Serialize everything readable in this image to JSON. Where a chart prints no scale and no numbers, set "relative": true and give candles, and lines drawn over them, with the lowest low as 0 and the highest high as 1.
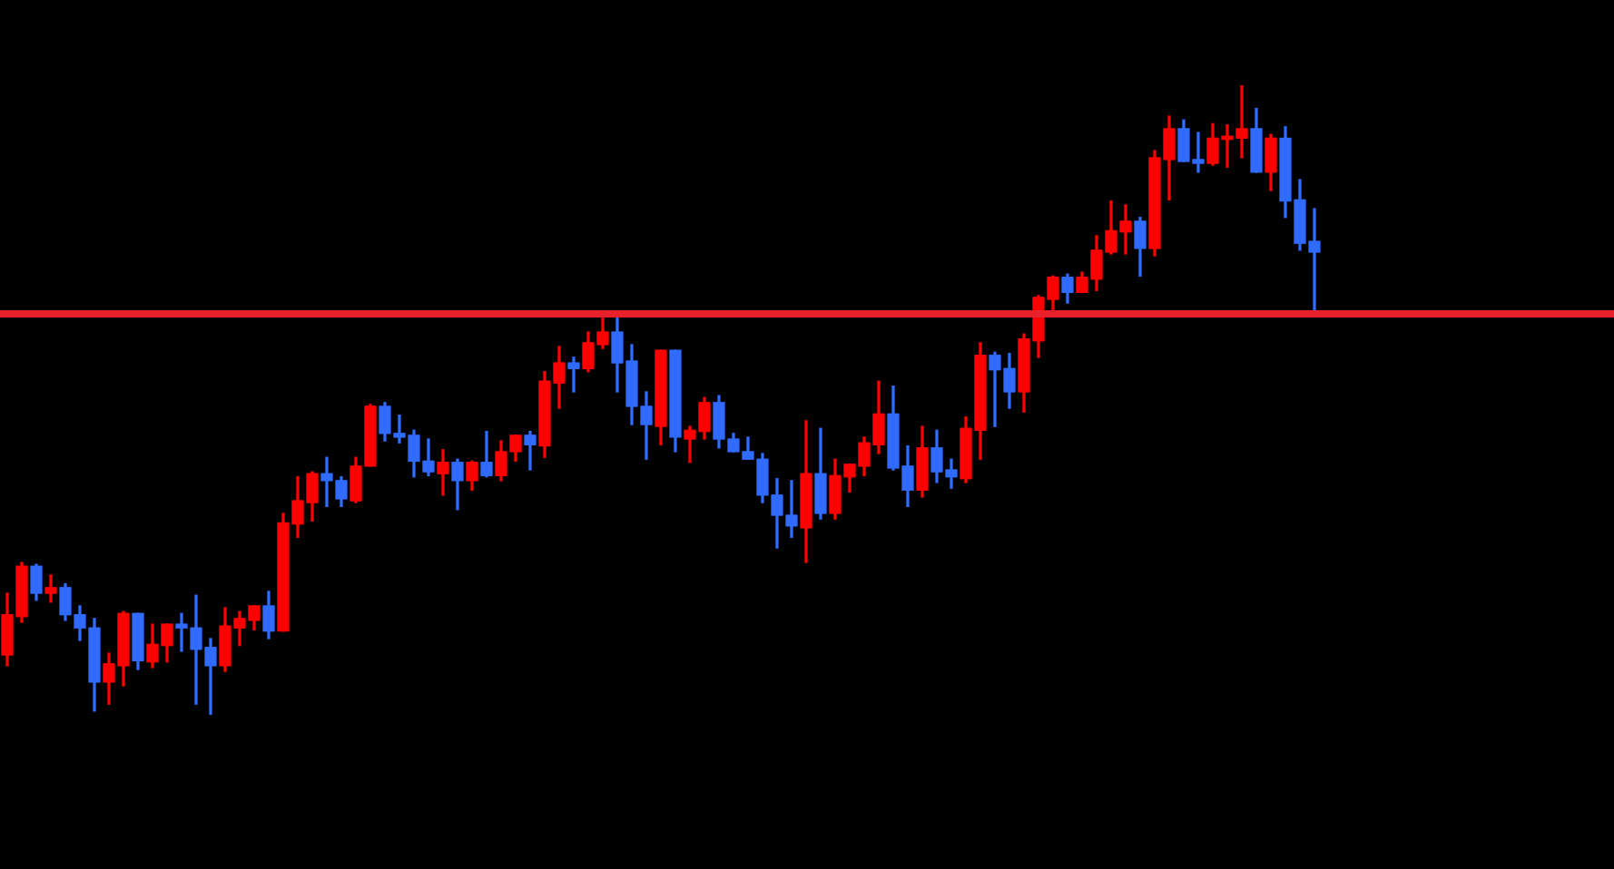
{
  "chart_data": {
    "type": "candlestick",
    "relative": true,
    "categories": [
      null,
      null,
      null,
      null,
      null,
      null,
      null,
      null,
      null,
      null,
      null,
      null,
      null,
      null,
      null,
      null,
      null,
      null,
      null,
      null,
      null,
      null,
      null,
      null,
      null,
      null,
      null,
      null,
      null,
      null,
      null,
      null,
      null,
      null,
      null,
      null,
      null,
      null,
      null,
      null,
      null,
      null,
      null,
      null,
      null,
      null,
      null,
      null,
      null,
      null,
      null,
      null,
      null,
      null,
      null,
      null,
      null,
      null,
      null,
      null,
      null,
      null,
      null,
      null,
      null,
      null,
      null,
      null,
      null,
      null,
      null,
      null,
      null,
      null,
      null,
      null,
      null,
      null,
      null,
      null,
      null,
      null,
      null,
      null,
      null,
      null,
      null,
      null,
      null,
      null,
      null
    ],
    "ohlc": [
      [
        0.095,
        0.193,
        0.078,
        0.159
      ],
      [
        0.156,
        0.242,
        0.147,
        0.236
      ],
      [
        0.236,
        0.239,
        0.182,
        0.193
      ],
      [
        0.193,
        0.222,
        0.179,
        0.202
      ],
      [
        0.202,
        0.208,
        0.15,
        0.159
      ],
      [
        0.159,
        0.173,
        0.118,
        0.138
      ],
      [
        0.138,
        0.153,
        0.006,
        0.052
      ],
      [
        0.052,
        0.098,
        0.017,
        0.081
      ],
      [
        0.078,
        0.164,
        0.046,
        0.161
      ],
      [
        0.161,
        0.161,
        0.072,
        0.086
      ],
      [
        0.084,
        0.144,
        0.075,
        0.112
      ],
      [
        0.11,
        0.144,
        0.084,
        0.144
      ],
      [
        0.144,
        0.161,
        0.101,
        0.138
      ],
      [
        0.138,
        0.19,
        0.017,
        0.104
      ],
      [
        0.107,
        0.121,
        0,
        0.078
      ],
      [
        0.078,
        0.17,
        0.069,
        0.141
      ],
      [
        0.138,
        0.164,
        0.11,
        0.153
      ],
      [
        0.15,
        0.173,
        0.135,
        0.173
      ],
      [
        0.173,
        0.196,
        0.121,
        0.133
      ],
      [
        0.133,
        0.32,
        0.133,
        0.305
      ],
      [
        0.303,
        0.378,
        0.282,
        0.34
      ],
      [
        0.337,
        0.386,
        0.308,
        0.383
      ],
      [
        0.383,
        0.409,
        0.331,
        0.372
      ],
      [
        0.372,
        0.378,
        0.331,
        0.343
      ],
      [
        0.34,
        0.409,
        0.337,
        0.395
      ],
      [
        0.395,
        0.493,
        0.395,
        0.49
      ],
      [
        0.49,
        0.496,
        0.435,
        0.447
      ],
      [
        0.447,
        0.476,
        0.432,
        0.441
      ],
      [
        0.444,
        0.452,
        0.378,
        0.403
      ],
      [
        0.403,
        0.438,
        0.38,
        0.386
      ],
      [
        0.383,
        0.421,
        0.349,
        0.401
      ],
      [
        0.401,
        0.406,
        0.326,
        0.372
      ],
      [
        0.372,
        0.403,
        0.357,
        0.401
      ],
      [
        0.401,
        0.45,
        0.378,
        0.38
      ],
      [
        0.38,
        0.435,
        0.372,
        0.418
      ],
      [
        0.418,
        0.444,
        0.403,
        0.444
      ],
      [
        0.444,
        0.45,
        0.389,
        0.429
      ],
      [
        0.427,
        0.545,
        0.409,
        0.53
      ],
      [
        0.527,
        0.585,
        0.487,
        0.559
      ],
      [
        0.559,
        0.568,
        0.513,
        0.55
      ],
      [
        0.55,
        0.608,
        0.545,
        0.591
      ],
      [
        0.588,
        0.631,
        0.582,
        0.608
      ],
      [
        0.608,
        0.631,
        0.513,
        0.559
      ],
      [
        0.562,
        0.588,
        0.461,
        0.49
      ],
      [
        0.49,
        0.513,
        0.406,
        0.461
      ],
      [
        0.458,
        0.579,
        0.429,
        0.579
      ],
      [
        0.579,
        0.579,
        0.418,
        0.441
      ],
      [
        0.438,
        0.458,
        0.401,
        0.452
      ],
      [
        0.45,
        0.504,
        0.438,
        0.496
      ],
      [
        0.496,
        0.507,
        0.424,
        0.438
      ],
      [
        0.438,
        0.447,
        0.418,
        0.418
      ],
      [
        0.418,
        0.441,
        0.406,
        0.406
      ],
      [
        0.406,
        0.415,
        0.337,
        0.349
      ],
      [
        0.349,
        0.375,
        0.265,
        0.317
      ],
      [
        0.317,
        0.372,
        0.282,
        0.3
      ],
      [
        0.297,
        0.467,
        0.242,
        0.383
      ],
      [
        0.383,
        0.455,
        0.311,
        0.32
      ],
      [
        0.32,
        0.406,
        0.311,
        0.38
      ],
      [
        0.378,
        0.398,
        0.354,
        0.398
      ],
      [
        0.395,
        0.441,
        0.38,
        0.432
      ],
      [
        0.429,
        0.53,
        0.415,
        0.478
      ],
      [
        0.478,
        0.522,
        0.389,
        0.392
      ],
      [
        0.395,
        0.427,
        0.331,
        0.357
      ],
      [
        0.357,
        0.458,
        0.346,
        0.424
      ],
      [
        0.424,
        0.452,
        0.369,
        0.386
      ],
      [
        0.389,
        0.406,
        0.36,
        0.378
      ],
      [
        0.375,
        0.473,
        0.369,
        0.455
      ],
      [
        0.452,
        0.591,
        0.406,
        0.571
      ],
      [
        0.571,
        0.576,
        0.458,
        0.548
      ],
      [
        0.55,
        0.574,
        0.487,
        0.513
      ],
      [
        0.513,
        0.605,
        0.481,
        0.597
      ],
      [
        0.594,
        0.666,
        0.568,
        0.663
      ],
      [
        0.66,
        0.697,
        0.643,
        0.695
      ],
      [
        0.695,
        0.7,
        0.654,
        0.671
      ],
      [
        0.671,
        0.703,
        0.671,
        0.695
      ],
      [
        0.692,
        0.761,
        0.674,
        0.738
      ],
      [
        0.735,
        0.816,
        0.732,
        0.769
      ],
      [
        0.767,
        0.81,
        0.732,
        0.784
      ],
      [
        0.784,
        0.79,
        0.697,
        0.741
      ],
      [
        0.741,
        0.896,
        0.729,
        0.885
      ],
      [
        0.882,
        0.951,
        0.818,
        0.931
      ],
      [
        0.931,
        0.945,
        0.879,
        0.879
      ],
      [
        0.882,
        0.925,
        0.862,
        0.876
      ],
      [
        0.876,
        0.939,
        0.873,
        0.916
      ],
      [
        0.914,
        0.937,
        0.87,
        0.919
      ],
      [
        0.916,
        1,
        0.885,
        0.931
      ],
      [
        0.931,
        0.963,
        0.862,
        0.862
      ],
      [
        0.862,
        0.922,
        0.833,
        0.916
      ],
      [
        0.916,
        0.934,
        0.79,
        0.816
      ],
      [
        0.818,
        0.85,
        0.738,
        0.749
      ],
      [
        0.752,
        0.804,
        0.643,
        0.735
      ]
    ],
    "colors": [
      "#ff0000",
      "#ff0000",
      "#2f6bff",
      "#ff0000",
      "#2f6bff",
      "#2f6bff",
      "#2f6bff",
      "#ff0000",
      "#ff0000",
      "#2f6bff",
      "#ff0000",
      "#ff0000",
      "#2f6bff",
      "#2f6bff",
      "#2f6bff",
      "#ff0000",
      "#ff0000",
      "#ff0000",
      "#2f6bff",
      "#ff0000",
      "#ff0000",
      "#ff0000",
      "#2f6bff",
      "#2f6bff",
      "#ff0000",
      "#ff0000",
      "#2f6bff",
      "#2f6bff",
      "#2f6bff",
      "#2f6bff",
      "#ff0000",
      "#2f6bff",
      "#ff0000",
      "#2f6bff",
      "#ff0000",
      "#ff0000",
      "#2f6bff",
      "#ff0000",
      "#ff0000",
      "#2f6bff",
      "#ff0000",
      "#ff0000",
      "#2f6bff",
      "#2f6bff",
      "#2f6bff",
      "#ff0000",
      "#2f6bff",
      "#ff0000",
      "#ff0000",
      "#2f6bff",
      "#2f6bff",
      "#2f6bff",
      "#2f6bff",
      "#2f6bff",
      "#2f6bff",
      "#ff0000",
      "#2f6bff",
      "#ff0000",
      "#ff0000",
      "#ff0000",
      "#ff0000",
      "#2f6bff",
      "#2f6bff",
      "#ff0000",
      "#2f6bff",
      "#2f6bff",
      "#ff0000",
      "#ff0000",
      "#2f6bff",
      "#2f6bff",
      "#ff0000",
      "#ff0000",
      "#ff0000",
      "#2f6bff",
      "#ff0000",
      "#ff0000",
      "#ff0000",
      "#ff0000",
      "#2f6bff",
      "#ff0000",
      "#ff0000",
      "#2f6bff",
      "#2f6bff",
      "#ff0000",
      "#ff0000",
      "#ff0000",
      "#2f6bff",
      "#ff0000",
      "#2f6bff",
      "#2f6bff",
      "#2f6bff"
    ],
    "ref_lines": [
      {
        "axis": "y",
        "value": 0.637,
        "color": "#e8202a"
      }
    ]
  }
}
